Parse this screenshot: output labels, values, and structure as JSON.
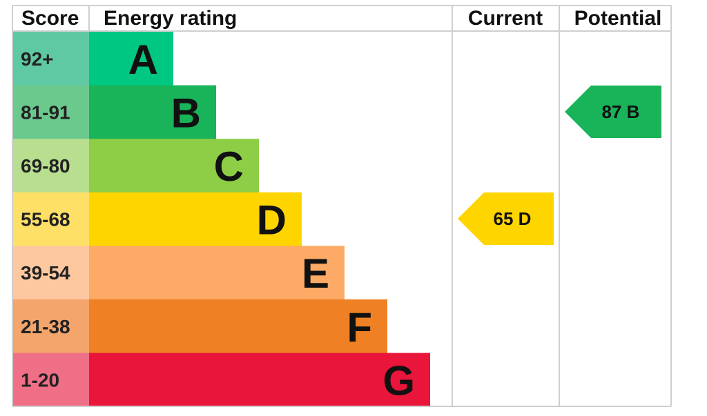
{
  "chart_data": {
    "type": "table",
    "headers": {
      "score": "Score",
      "rating": "Energy rating",
      "current": "Current",
      "potential": "Potential"
    },
    "bands": [
      {
        "letter": "A",
        "range": "92+",
        "color": "#00c781",
        "score_bg": "#5fc9a3"
      },
      {
        "letter": "B",
        "range": "81-91",
        "color": "#19b459",
        "score_bg": "#6cc98e"
      },
      {
        "letter": "C",
        "range": "69-80",
        "color": "#8dce46",
        "score_bg": "#b7df8f"
      },
      {
        "letter": "D",
        "range": "55-68",
        "color": "#ffd500",
        "score_bg": "#ffe066"
      },
      {
        "letter": "E",
        "range": "39-54",
        "color": "#fcaa65",
        "score_bg": "#fdc8a0"
      },
      {
        "letter": "F",
        "range": "21-38",
        "color": "#ef8023",
        "score_bg": "#f3a56c"
      },
      {
        "letter": "G",
        "range": "1-20",
        "color": "#e9153b",
        "score_bg": "#ef6f87"
      }
    ],
    "current": {
      "value": 65,
      "band": "D",
      "label": "65 D",
      "color": "#ffd500"
    },
    "potential": {
      "value": 87,
      "band": "B",
      "label": "87 B",
      "color": "#19b459"
    }
  }
}
